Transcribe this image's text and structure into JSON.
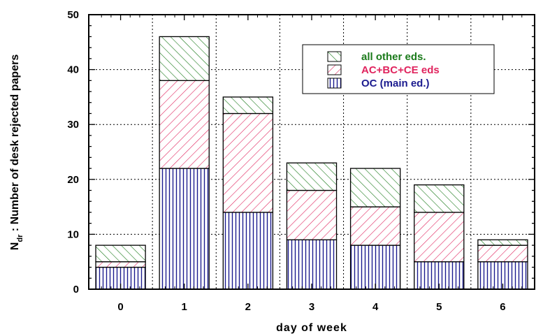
{
  "chart_data": {
    "type": "bar",
    "stacked": true,
    "xlabel": "day of week",
    "ylabel_main": "N",
    "ylabel_sub": "dr",
    "ylabel_rest": " : Number of desk rejected papers",
    "categories": [
      "0",
      "1",
      "2",
      "3",
      "4",
      "5",
      "6"
    ],
    "yticks": [
      "0",
      "10",
      "20",
      "30",
      "40",
      "50"
    ],
    "ylim": [
      0,
      50
    ],
    "grid": true,
    "legend_position": "top-right",
    "series": [
      {
        "name": "OC (main ed.)",
        "values": [
          4,
          22,
          14,
          9,
          8,
          5,
          5
        ],
        "color": "#1b1b8f",
        "pattern": "vertical"
      },
      {
        "name": "AC+BC+CE eds",
        "values": [
          1,
          16,
          18,
          9,
          7,
          9,
          3
        ],
        "color": "#e0245e",
        "pattern": "diagonal-right"
      },
      {
        "name": "all other eds.",
        "values": [
          3,
          8,
          3,
          5,
          7,
          5,
          1
        ],
        "color": "#1a7a1a",
        "pattern": "diagonal-left"
      }
    ],
    "legend_order": [
      2,
      1,
      0
    ]
  }
}
